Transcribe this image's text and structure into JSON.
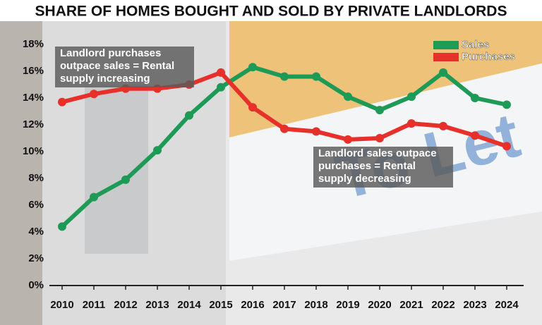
{
  "chart_data": {
    "type": "line",
    "title": "SHARE OF HOMES BOUGHT AND SOLD BY PRIVATE LANDLORDS",
    "categories": [
      "2010",
      "2011",
      "2012",
      "2013",
      "2014",
      "2015",
      "2016",
      "2017",
      "2018",
      "2019",
      "2020",
      "2021",
      "2022",
      "2023",
      "2024"
    ],
    "series": [
      {
        "name": "Sales",
        "color": "#1e9a57",
        "values": [
          4.4,
          6.6,
          7.9,
          10.1,
          12.7,
          14.8,
          16.3,
          15.6,
          15.6,
          14.1,
          13.1,
          14.1,
          15.9,
          14.0,
          13.5
        ]
      },
      {
        "name": "Purchases",
        "color": "#e8302a",
        "values": [
          13.7,
          14.3,
          14.7,
          14.7,
          15.0,
          15.9,
          13.3,
          11.7,
          11.5,
          10.9,
          11.0,
          12.1,
          11.9,
          11.2,
          10.4
        ]
      }
    ],
    "ylim": [
      0,
      18
    ],
    "yticks": [
      {
        "value": 0,
        "label": "0%"
      },
      {
        "value": 2,
        "label": "2%"
      },
      {
        "value": 4,
        "label": "4%"
      },
      {
        "value": 6,
        "label": "6%"
      },
      {
        "value": 8,
        "label": "8%"
      },
      {
        "value": 10,
        "label": "10%"
      },
      {
        "value": 12,
        "label": "12%"
      },
      {
        "value": 14,
        "label": "14%"
      },
      {
        "value": 16,
        "label": "16%"
      },
      {
        "value": 18,
        "label": "18%"
      }
    ],
    "legend": "top-right",
    "annotations": [
      {
        "lines": [
          "Landlord purchases",
          "outpace sales = Rental",
          "supply increasing"
        ]
      },
      {
        "lines": [
          "Landlord sales outpace",
          "purchases = Rental",
          "supply decreasing"
        ]
      }
    ]
  }
}
